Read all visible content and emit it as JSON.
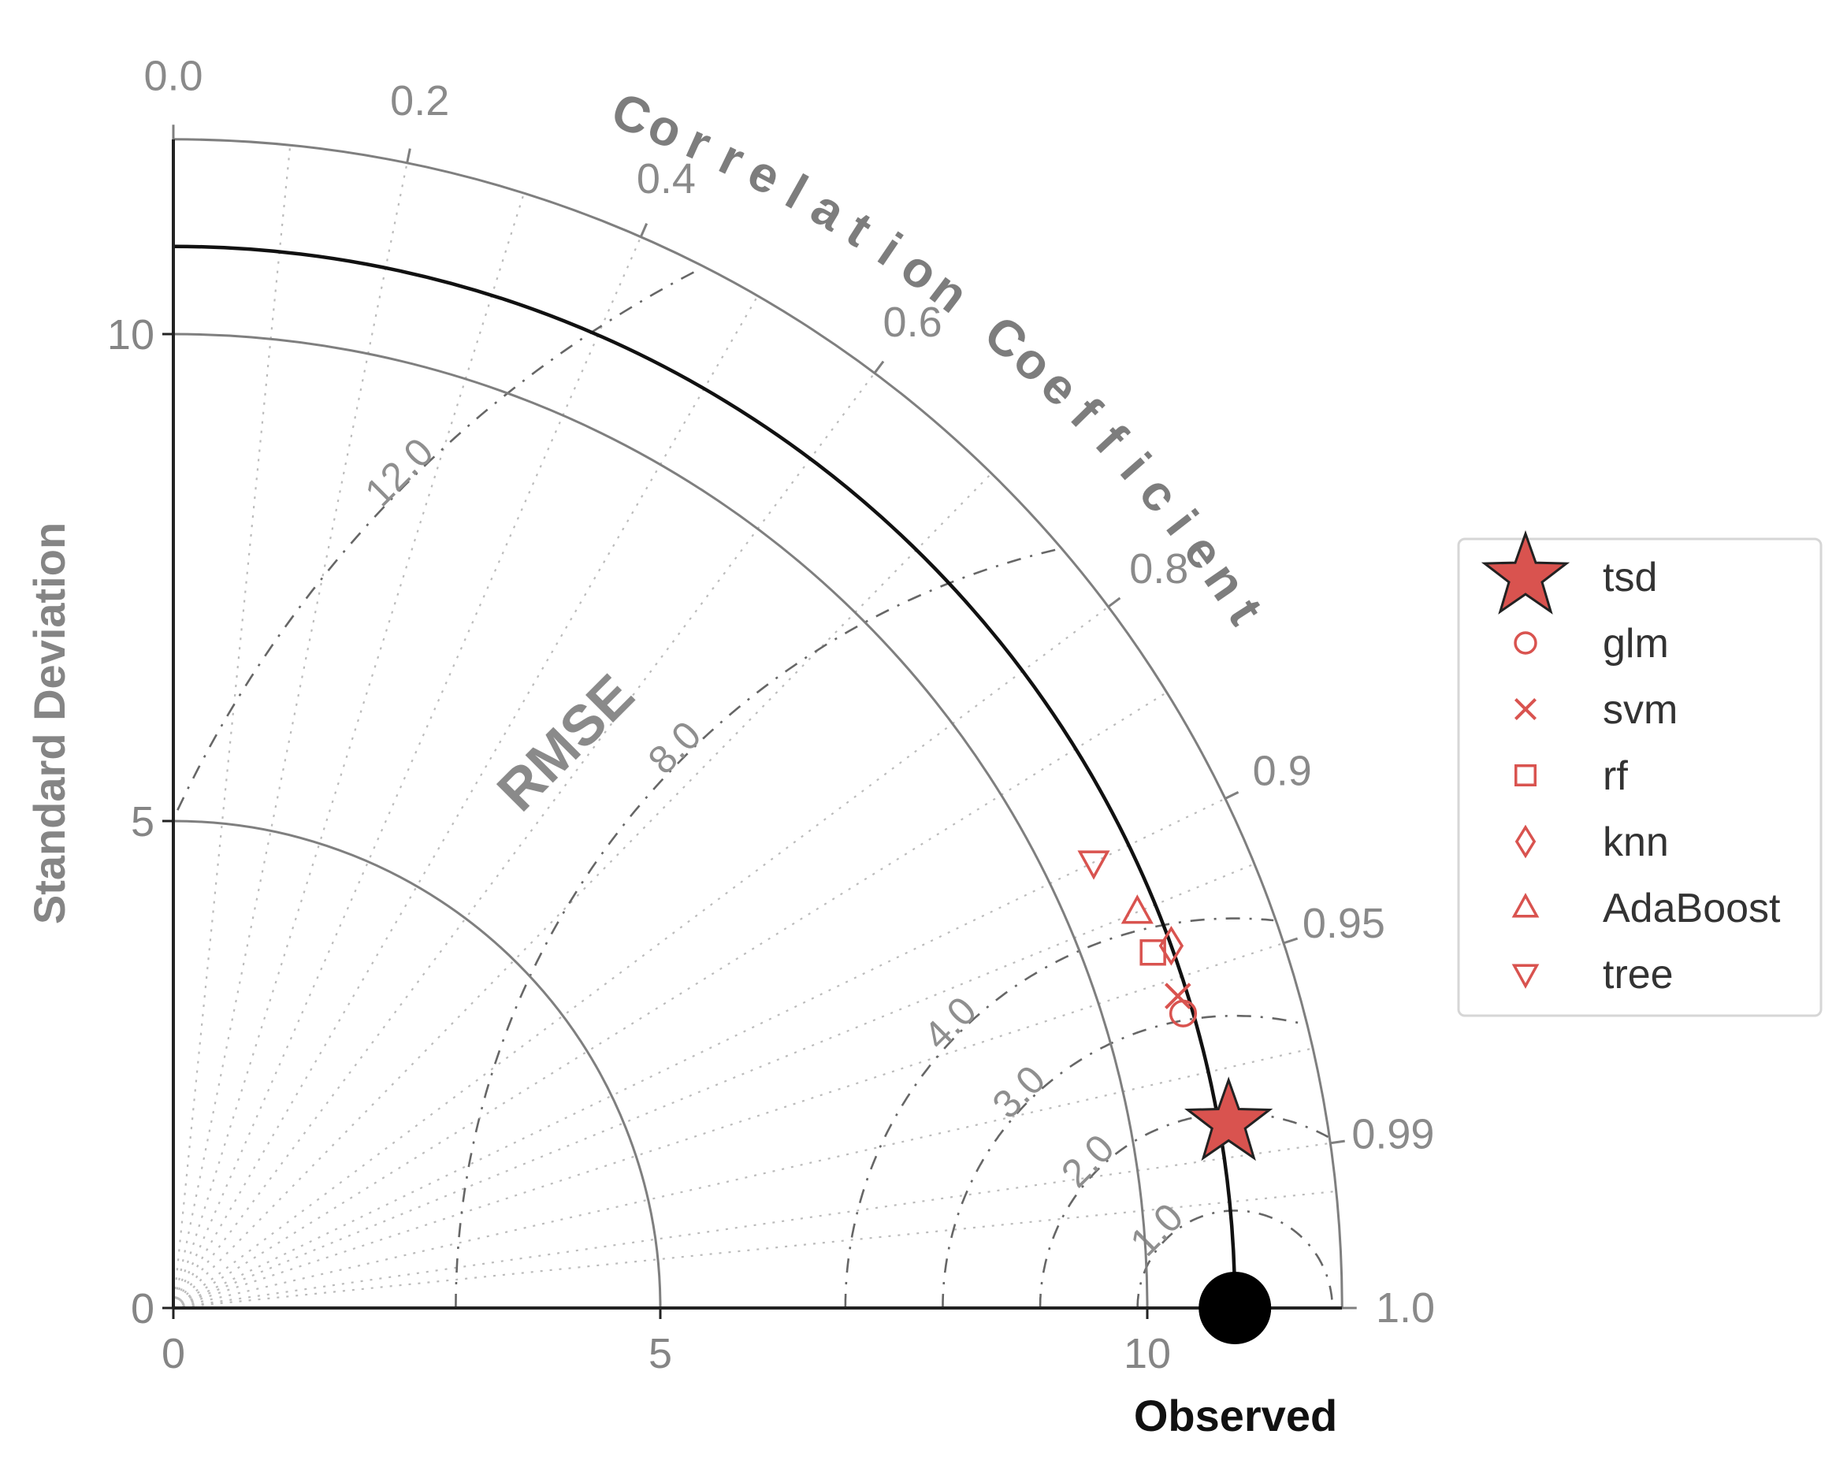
{
  "chart_data": {
    "type": "taylor",
    "ylabel": "Standard Deviation",
    "xlabel": "Observed",
    "correlation_title": "Correlation Coefficient",
    "rmse_title": "RMSE",
    "std_ticks": [
      0,
      5,
      10
    ],
    "std_tick_labels": [
      "0",
      "5",
      "10"
    ],
    "std_range": [
      0,
      12
    ],
    "correlation_ticks": [
      0.0,
      0.2,
      0.4,
      0.6,
      0.8,
      0.9,
      0.95,
      0.99,
      1.0
    ],
    "correlation_tick_labels": [
      "0.0",
      "0.2",
      "0.4",
      "0.6",
      "0.8",
      "0.9",
      "0.95",
      "0.99",
      "1.0"
    ],
    "std_arcs": [
      5,
      10,
      12
    ],
    "rmse_contours": [
      1,
      2,
      3,
      4,
      8,
      12
    ],
    "rmse_labels": [
      "1.0",
      "2.0",
      "3.0",
      "4.0",
      "8.0",
      "12.0"
    ],
    "observed": {
      "std": 10.9,
      "correlation": 1.0
    },
    "models": [
      {
        "name": "tsd",
        "marker": "star",
        "std": 11.0,
        "correlation": 0.985
      },
      {
        "name": "glm",
        "marker": "circle",
        "std": 10.8,
        "correlation": 0.96
      },
      {
        "name": "svm",
        "marker": "x",
        "std": 10.8,
        "correlation": 0.955
      },
      {
        "name": "rf",
        "marker": "square",
        "std": 10.7,
        "correlation": 0.94
      },
      {
        "name": "knn",
        "marker": "diamond",
        "std": 10.9,
        "correlation": 0.94
      },
      {
        "name": "AdaBoost",
        "marker": "triangle-up",
        "std": 10.7,
        "correlation": 0.925
      },
      {
        "name": "tree",
        "marker": "triangle-down",
        "std": 10.5,
        "correlation": 0.9
      }
    ],
    "grid": true,
    "legend_position": "right"
  },
  "colors": {
    "model": "#d9534f",
    "observed": "#000000",
    "axis": "#222222",
    "arc": "#7f7f7f",
    "grid": "#bbbbbb"
  }
}
